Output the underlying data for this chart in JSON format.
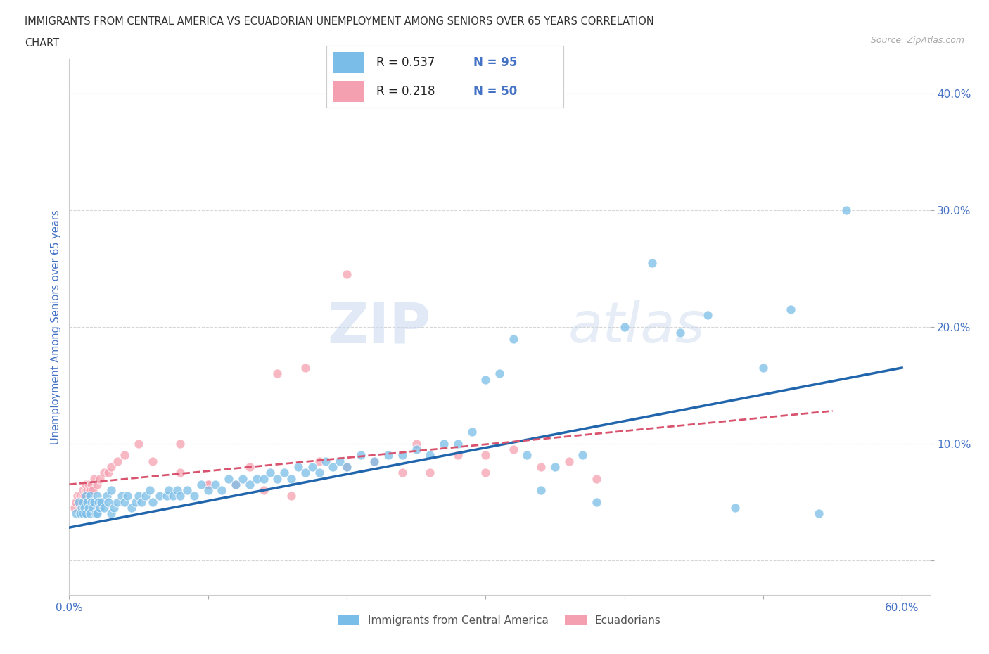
{
  "title_line1": "IMMIGRANTS FROM CENTRAL AMERICA VS ECUADORIAN UNEMPLOYMENT AMONG SENIORS OVER 65 YEARS CORRELATION",
  "title_line2": "CHART",
  "source_text": "Source: ZipAtlas.com",
  "ylabel": "Unemployment Among Seniors over 65 years",
  "xlim": [
    0.0,
    0.62
  ],
  "ylim": [
    -0.03,
    0.43
  ],
  "xtick_positions": [
    0.0,
    0.1,
    0.2,
    0.3,
    0.4,
    0.5,
    0.6
  ],
  "xticklabels": [
    "0.0%",
    "",
    "",
    "",
    "",
    "",
    "60.0%"
  ],
  "ytick_positions": [
    0.0,
    0.1,
    0.2,
    0.3,
    0.4
  ],
  "yticklabels": [
    "",
    "10.0%",
    "20.0%",
    "30.0%",
    "40.0%"
  ],
  "blue_R": 0.537,
  "blue_N": 95,
  "pink_R": 0.218,
  "pink_N": 50,
  "blue_color": "#7abde8",
  "pink_color": "#f5a0b0",
  "blue_line_color": "#2166ac",
  "pink_line_color": "#d9536e",
  "watermark_zip": "ZIP",
  "watermark_atlas": "atlas",
  "legend_items": [
    "Immigrants from Central America",
    "Ecuadorians"
  ],
  "blue_scatter_x": [
    0.005,
    0.007,
    0.008,
    0.009,
    0.01,
    0.01,
    0.011,
    0.012,
    0.012,
    0.013,
    0.014,
    0.015,
    0.015,
    0.016,
    0.017,
    0.018,
    0.019,
    0.02,
    0.02,
    0.021,
    0.022,
    0.023,
    0.025,
    0.027,
    0.028,
    0.03,
    0.03,
    0.032,
    0.035,
    0.038,
    0.04,
    0.042,
    0.045,
    0.048,
    0.05,
    0.052,
    0.055,
    0.058,
    0.06,
    0.065,
    0.07,
    0.072,
    0.075,
    0.078,
    0.08,
    0.085,
    0.09,
    0.095,
    0.1,
    0.105,
    0.11,
    0.115,
    0.12,
    0.125,
    0.13,
    0.135,
    0.14,
    0.145,
    0.15,
    0.155,
    0.16,
    0.165,
    0.17,
    0.175,
    0.18,
    0.185,
    0.19,
    0.195,
    0.2,
    0.21,
    0.22,
    0.23,
    0.24,
    0.25,
    0.26,
    0.27,
    0.28,
    0.29,
    0.3,
    0.31,
    0.32,
    0.33,
    0.34,
    0.35,
    0.37,
    0.4,
    0.42,
    0.44,
    0.46,
    0.48,
    0.5,
    0.52,
    0.54,
    0.38,
    0.56
  ],
  "blue_scatter_y": [
    0.04,
    0.05,
    0.04,
    0.045,
    0.04,
    0.05,
    0.045,
    0.04,
    0.055,
    0.05,
    0.045,
    0.04,
    0.055,
    0.05,
    0.045,
    0.05,
    0.04,
    0.04,
    0.055,
    0.05,
    0.045,
    0.05,
    0.045,
    0.055,
    0.05,
    0.04,
    0.06,
    0.045,
    0.05,
    0.055,
    0.05,
    0.055,
    0.045,
    0.05,
    0.055,
    0.05,
    0.055,
    0.06,
    0.05,
    0.055,
    0.055,
    0.06,
    0.055,
    0.06,
    0.055,
    0.06,
    0.055,
    0.065,
    0.06,
    0.065,
    0.06,
    0.07,
    0.065,
    0.07,
    0.065,
    0.07,
    0.07,
    0.075,
    0.07,
    0.075,
    0.07,
    0.08,
    0.075,
    0.08,
    0.075,
    0.085,
    0.08,
    0.085,
    0.08,
    0.09,
    0.085,
    0.09,
    0.09,
    0.095,
    0.09,
    0.1,
    0.1,
    0.11,
    0.155,
    0.16,
    0.19,
    0.09,
    0.06,
    0.08,
    0.09,
    0.2,
    0.255,
    0.195,
    0.21,
    0.045,
    0.165,
    0.215,
    0.04,
    0.05,
    0.3
  ],
  "pink_scatter_x": [
    0.004,
    0.005,
    0.006,
    0.007,
    0.008,
    0.009,
    0.01,
    0.01,
    0.011,
    0.012,
    0.012,
    0.013,
    0.014,
    0.015,
    0.016,
    0.017,
    0.018,
    0.02,
    0.022,
    0.025,
    0.028,
    0.03,
    0.035,
    0.04,
    0.05,
    0.06,
    0.08,
    0.1,
    0.12,
    0.14,
    0.16,
    0.18,
    0.2,
    0.22,
    0.24,
    0.26,
    0.28,
    0.3,
    0.32,
    0.34,
    0.36,
    0.38,
    0.17,
    0.13,
    0.25,
    0.08,
    0.15,
    0.2,
    0.3,
    0.1
  ],
  "pink_scatter_y": [
    0.045,
    0.05,
    0.055,
    0.05,
    0.055,
    0.05,
    0.055,
    0.06,
    0.055,
    0.06,
    0.065,
    0.06,
    0.065,
    0.06,
    0.065,
    0.06,
    0.07,
    0.065,
    0.07,
    0.075,
    0.075,
    0.08,
    0.085,
    0.09,
    0.1,
    0.085,
    0.075,
    0.065,
    0.065,
    0.06,
    0.055,
    0.085,
    0.08,
    0.085,
    0.075,
    0.075,
    0.09,
    0.09,
    0.095,
    0.08,
    0.085,
    0.07,
    0.165,
    0.08,
    0.1,
    0.1,
    0.16,
    0.245,
    0.075,
    0.065
  ],
  "blue_line_x": [
    0.0,
    0.6
  ],
  "blue_line_y": [
    0.028,
    0.165
  ],
  "pink_line_x": [
    0.0,
    0.55
  ],
  "pink_line_y": [
    0.065,
    0.128
  ],
  "background_color": "#ffffff",
  "grid_color": "#cccccc",
  "title_color": "#333333",
  "tick_label_color": "#4472c4"
}
